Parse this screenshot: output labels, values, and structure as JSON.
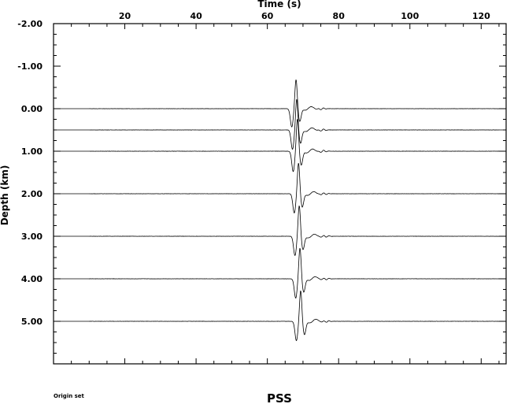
{
  "chart_data": {
    "type": "line",
    "xlabel": "Time (s)",
    "ylabel": "Depth (km)",
    "xlim": [
      0,
      127
    ],
    "ylim": [
      -2.0,
      6.0
    ],
    "x_ticks": [
      20,
      40,
      60,
      80,
      100,
      120
    ],
    "x_tick_labels": [
      "20",
      "40",
      "60",
      "80",
      "100",
      "120"
    ],
    "y_ticks": [
      -2.0,
      -1.0,
      0.0,
      1.0,
      2.0,
      3.0,
      4.0,
      5.0
    ],
    "y_tick_labels": [
      "-2.00",
      "-1.00",
      "0.00",
      "1.00",
      "2.00",
      "3.00",
      "4.00",
      "5.00"
    ],
    "traces": [
      {
        "depth": 0.0,
        "peak_time": 67.2,
        "amplitude": 0.9
      },
      {
        "depth": 0.5,
        "peak_time": 67.4,
        "amplitude": 0.95
      },
      {
        "depth": 1.0,
        "peak_time": 67.6,
        "amplitude": 1.0
      },
      {
        "depth": 2.0,
        "peak_time": 67.9,
        "amplitude": 0.95
      },
      {
        "depth": 3.0,
        "peak_time": 68.1,
        "amplitude": 0.95
      },
      {
        "depth": 4.0,
        "peak_time": 68.3,
        "amplitude": 0.95
      },
      {
        "depth": 5.0,
        "peak_time": 68.5,
        "amplitude": 0.95
      }
    ],
    "grid": false
  },
  "footer": {
    "left_caption": "Origin set",
    "center_caption": "PSS"
  }
}
